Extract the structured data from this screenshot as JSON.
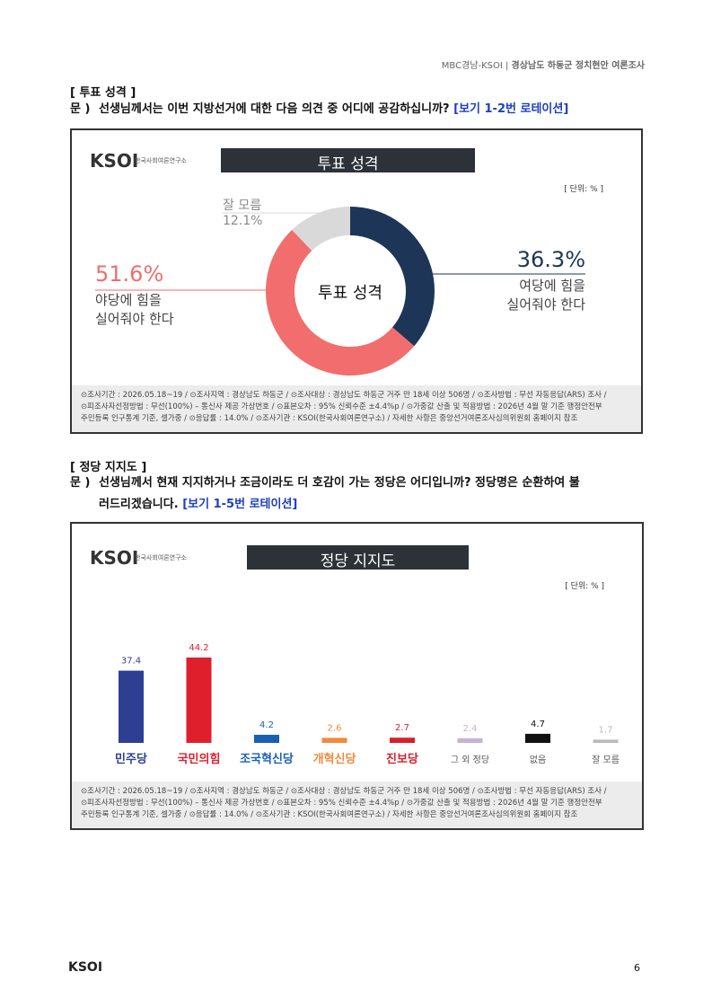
{
  "header": {
    "source": "MBC경남-KSOI",
    "title": "경상남도 하동군 정치현안 여론조사"
  },
  "sections": [
    {
      "heading": "[ 투표 성격 ]",
      "prefix": "문 )",
      "question": "선생님께서는 이번 지방선거에 대한 다음 의견 중 어디에 공감하십니까?",
      "note": "[보기 1-2번 로테이션]"
    },
    {
      "heading": "[ 정당 지지도 ]",
      "prefix": "문 )",
      "question": "선생님께서 현재 지지하거나 조금이라도 더 호감이 가는 정당은 어디입니까? 정당명은 순환하여 불러드리겠습니다.",
      "note": "[보기 1-5번 로테이션]"
    }
  ],
  "chart_data": [
    {
      "type": "donut",
      "title": "투표 성격",
      "logo": "KSOI",
      "logo_sub": "한국사회여론연구소",
      "unit": "[ 단위: % ]",
      "center_label": "투표 성격",
      "categories": [
        "여당에 힘을\n실어줘야 한다",
        "야당에 힘을\n실어줘야 한다",
        "잘 모름"
      ],
      "values": [
        36.3,
        51.6,
        12.1
      ],
      "value_labels": [
        "36.3%",
        "51.6%",
        "12.1%"
      ],
      "colors": [
        "#1d3557",
        "#f26d6d",
        "#d9d9d9"
      ],
      "footnote": [
        "⊙조사기간 : 2026.05.18~19 / ⊙조사지역 : 경상남도 하동군 / ⊙조사대상 : 경상남도 하동군 거주 만 18세 이상 506명 / ⊙조사방법 : 무선 자동응답(ARS) 조사 /",
        "⊙피조사자선정방법 : 무선(100%) – 통신사 제공 가상번호 / ⊙표본오차 : 95% 신뢰수준 ±4.4%p / ⊙가중값 산출 및 적용방법 : 2026년 4월 말 기준 행정안전부",
        "주민등록 인구통계 기준, 셀가중 / ⊙응답률 : 14.0% / ⊙조사기관 : KSOI(한국사회여론연구소) / 자세한 사항은 중앙선거여론조사심의위원회 홈페이지 참조"
      ]
    },
    {
      "type": "bar",
      "title": "정당 지지도",
      "logo": "KSOI",
      "logo_sub": "한국사회여론연구소",
      "unit": "[ 단위: % ]",
      "categories": [
        "민주당",
        "국민의힘",
        "조국혁신당",
        "개혁신당",
        "진보당",
        "그 외 정당",
        "없음",
        "잘 모름"
      ],
      "values": [
        37.4,
        44.2,
        4.2,
        2.6,
        2.7,
        2.4,
        4.7,
        1.7
      ],
      "colors": [
        "#2e3f93",
        "#e01f2d",
        "#1a5fb4",
        "#f08a3c",
        "#d71f2a",
        "#c8b3d3",
        "#111111",
        "#bbbbbb"
      ],
      "footnote": [
        "⊙조사기간 : 2026.05.18~19 / ⊙조사지역 : 경상남도 하동군 / ⊙조사대상 : 경상남도 하동군 거주 만 18세 이상 506명 / ⊙조사방법 : 무선 자동응답(ARS) 조사 /",
        "⊙피조사자선정방법 : 무선(100%) – 통신사 제공 가상번호 / ⊙표본오차 : 95% 신뢰수준 ±4.4%p / ⊙가중값 산출 및 적용방법 : 2026년 4월 말 기준 행정안전부",
        "주민등록 인구통계 기준, 셀가중 / ⊙응답률 : 14.0% / ⊙조사기관 : KSOI(한국사회여론연구소) / 자세한 사항은 중앙선거여론조사심의위원회 홈페이지 참조"
      ]
    }
  ],
  "footer": {
    "logo": "KSOI",
    "page": "6"
  }
}
